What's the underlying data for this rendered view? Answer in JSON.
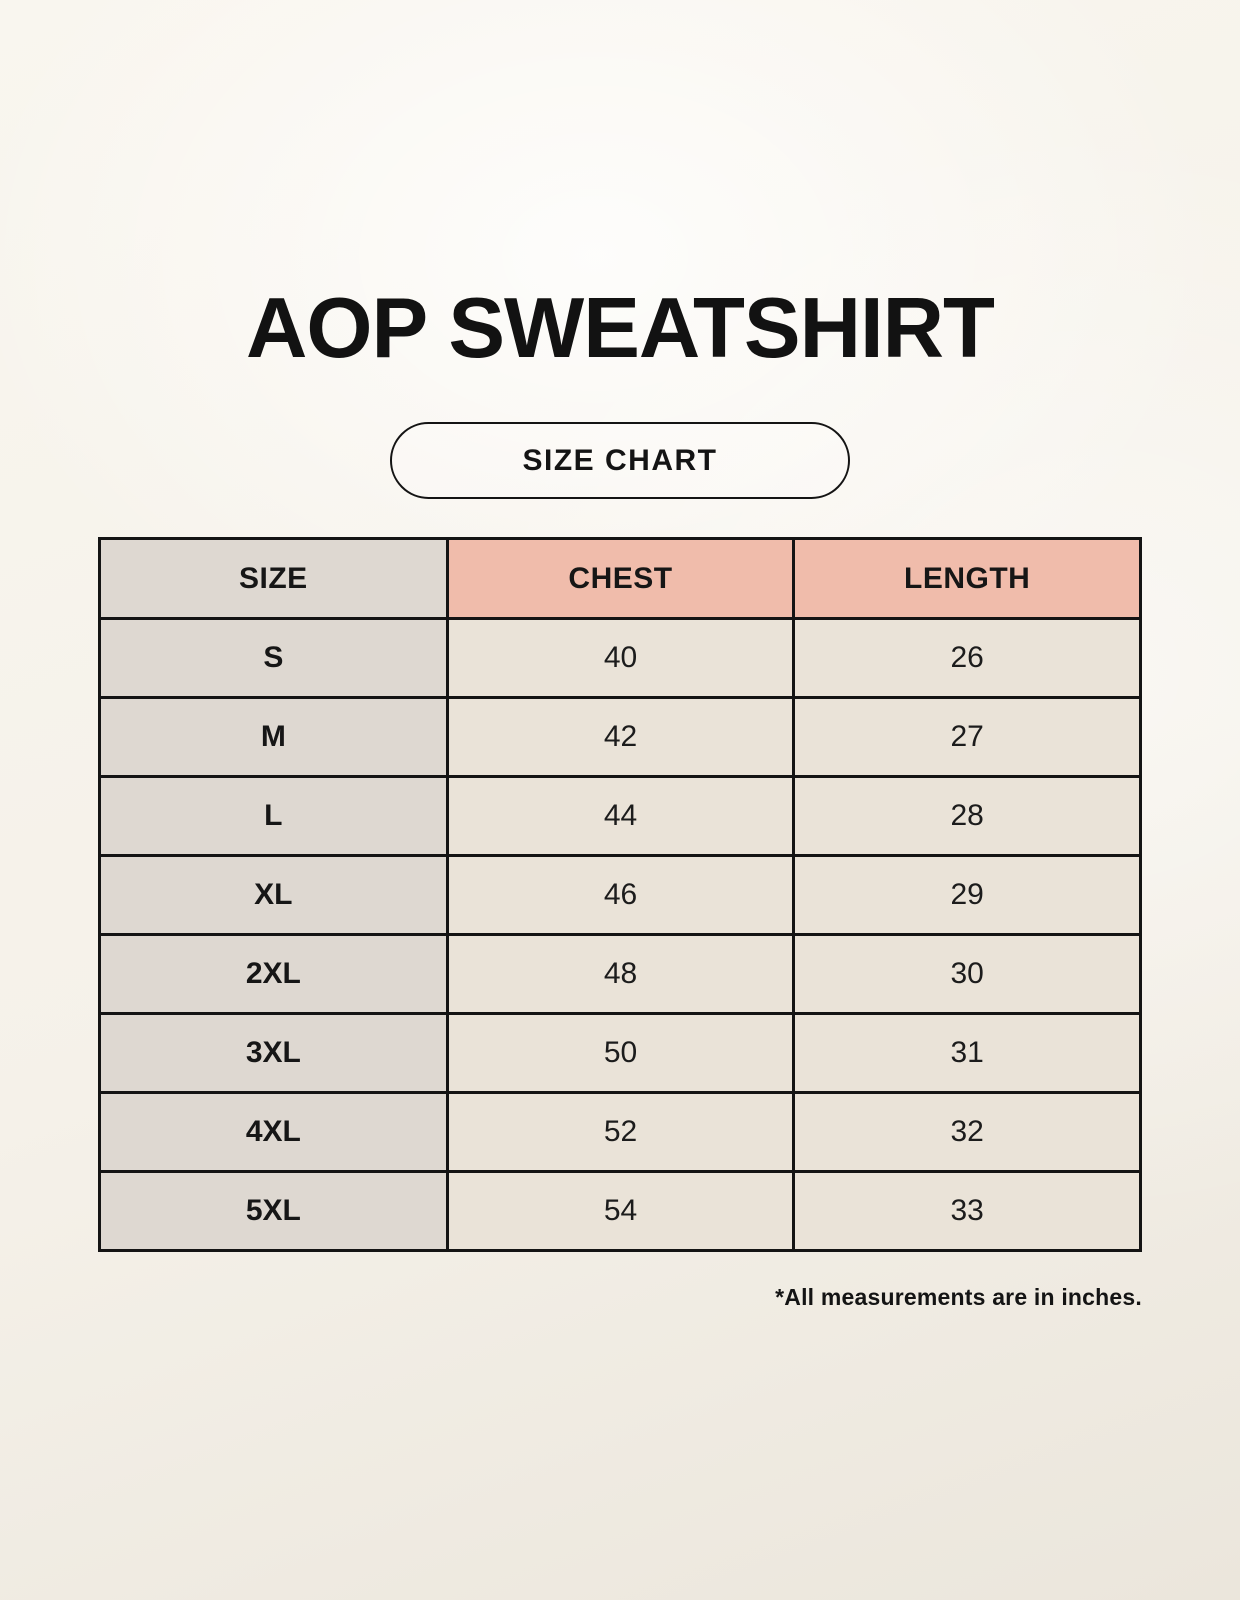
{
  "page": {
    "title": "AOP SWEATSHIRT",
    "badge_label": "SIZE CHART",
    "footnote": "*All measurements are in inches."
  },
  "colors": {
    "page_background": "#f5f1e9",
    "text": "#141414",
    "table_border": "#141414",
    "size_header_bg": "#ded8d1",
    "measure_header_bg": "#f0bcab",
    "size_column_bg": "#ded8d1",
    "value_cell_bg": "#eae3d8"
  },
  "chart_data": {
    "type": "table",
    "title": "AOP SWEATSHIRT",
    "subtitle": "SIZE CHART",
    "units": "inches",
    "columns": [
      "SIZE",
      "CHEST",
      "LENGTH"
    ],
    "rows": [
      {
        "size": "S",
        "chest": "40",
        "length": "26"
      },
      {
        "size": "M",
        "chest": "42",
        "length": "27"
      },
      {
        "size": "L",
        "chest": "44",
        "length": "28"
      },
      {
        "size": "XL",
        "chest": "46",
        "length": "29"
      },
      {
        "size": "2XL",
        "chest": "48",
        "length": "30"
      },
      {
        "size": "3XL",
        "chest": "50",
        "length": "31"
      },
      {
        "size": "4XL",
        "chest": "52",
        "length": "32"
      },
      {
        "size": "5XL",
        "chest": "54",
        "length": "33"
      }
    ],
    "note": "*All measurements are in inches."
  }
}
